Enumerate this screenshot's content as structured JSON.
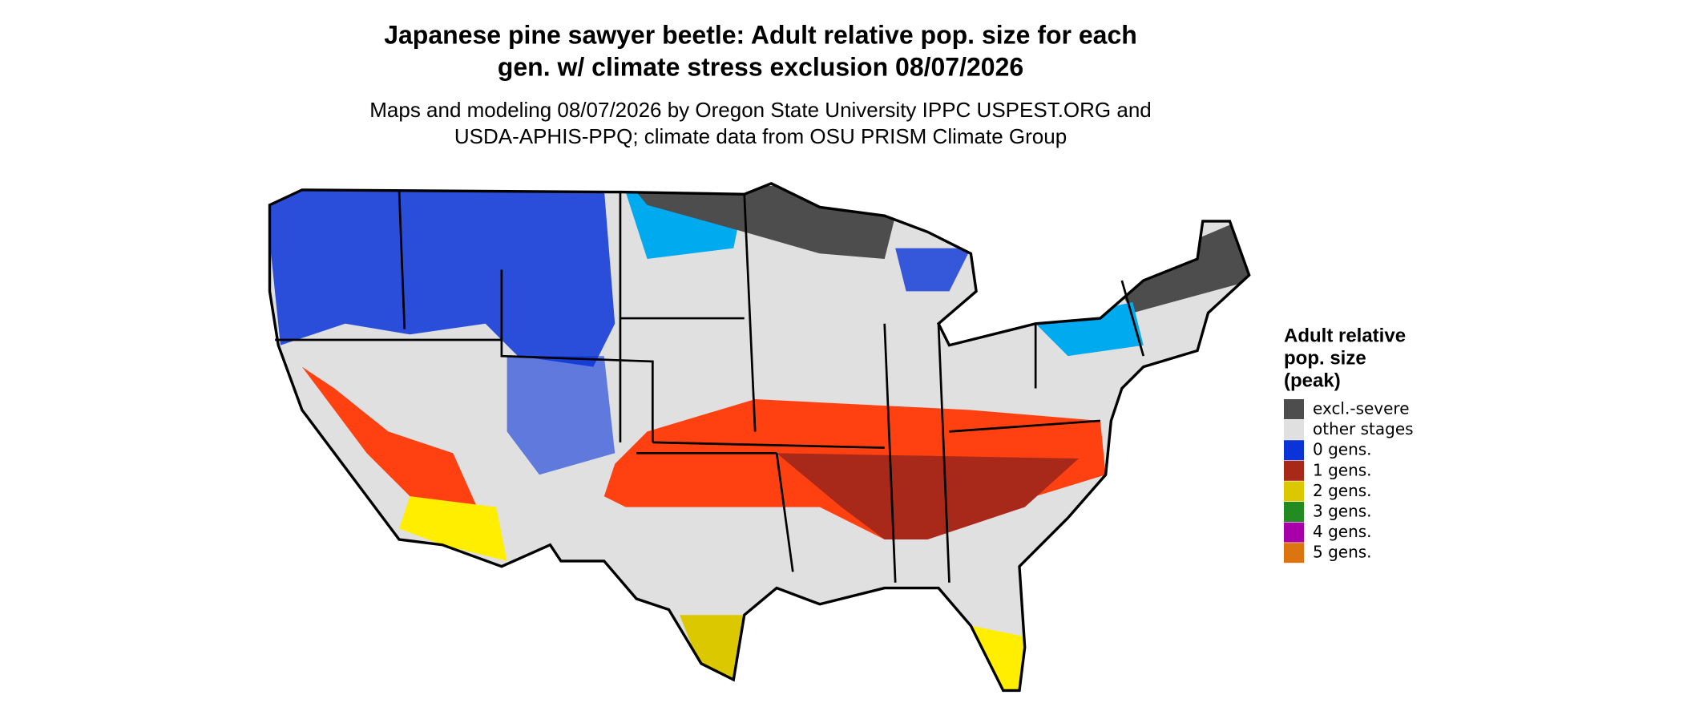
{
  "header": {
    "title_lines": [
      "Japanese pine sawyer beetle: Adult relative pop. size for each",
      "gen. w/ climate stress exclusion 08/07/2026"
    ],
    "subtitle_lines": [
      "Maps and modeling 08/07/2026 by Oregon State University IPPC USPEST.ORG and",
      "USDA-APHIS-PPQ; climate data from OSU PRISM Climate Group"
    ]
  },
  "legend": {
    "title_lines": [
      "Adult relative",
      "pop. size",
      "(peak)"
    ],
    "items": [
      {
        "label": "excl.-severe",
        "color": "#4d4d4d"
      },
      {
        "label": "other stages",
        "color": "#e0e0e0"
      },
      {
        "label": "0 gens.",
        "color": "#0a34d8"
      },
      {
        "label": "1 gens.",
        "color": "#a8281a"
      },
      {
        "label": "2 gens.",
        "color": "#dcc800"
      },
      {
        "label": "3 gens.",
        "color": "#228b22"
      },
      {
        "label": "4 gens.",
        "color": "#a800a8"
      },
      {
        "label": "5 gens.",
        "color": "#dc7410"
      }
    ]
  }
}
